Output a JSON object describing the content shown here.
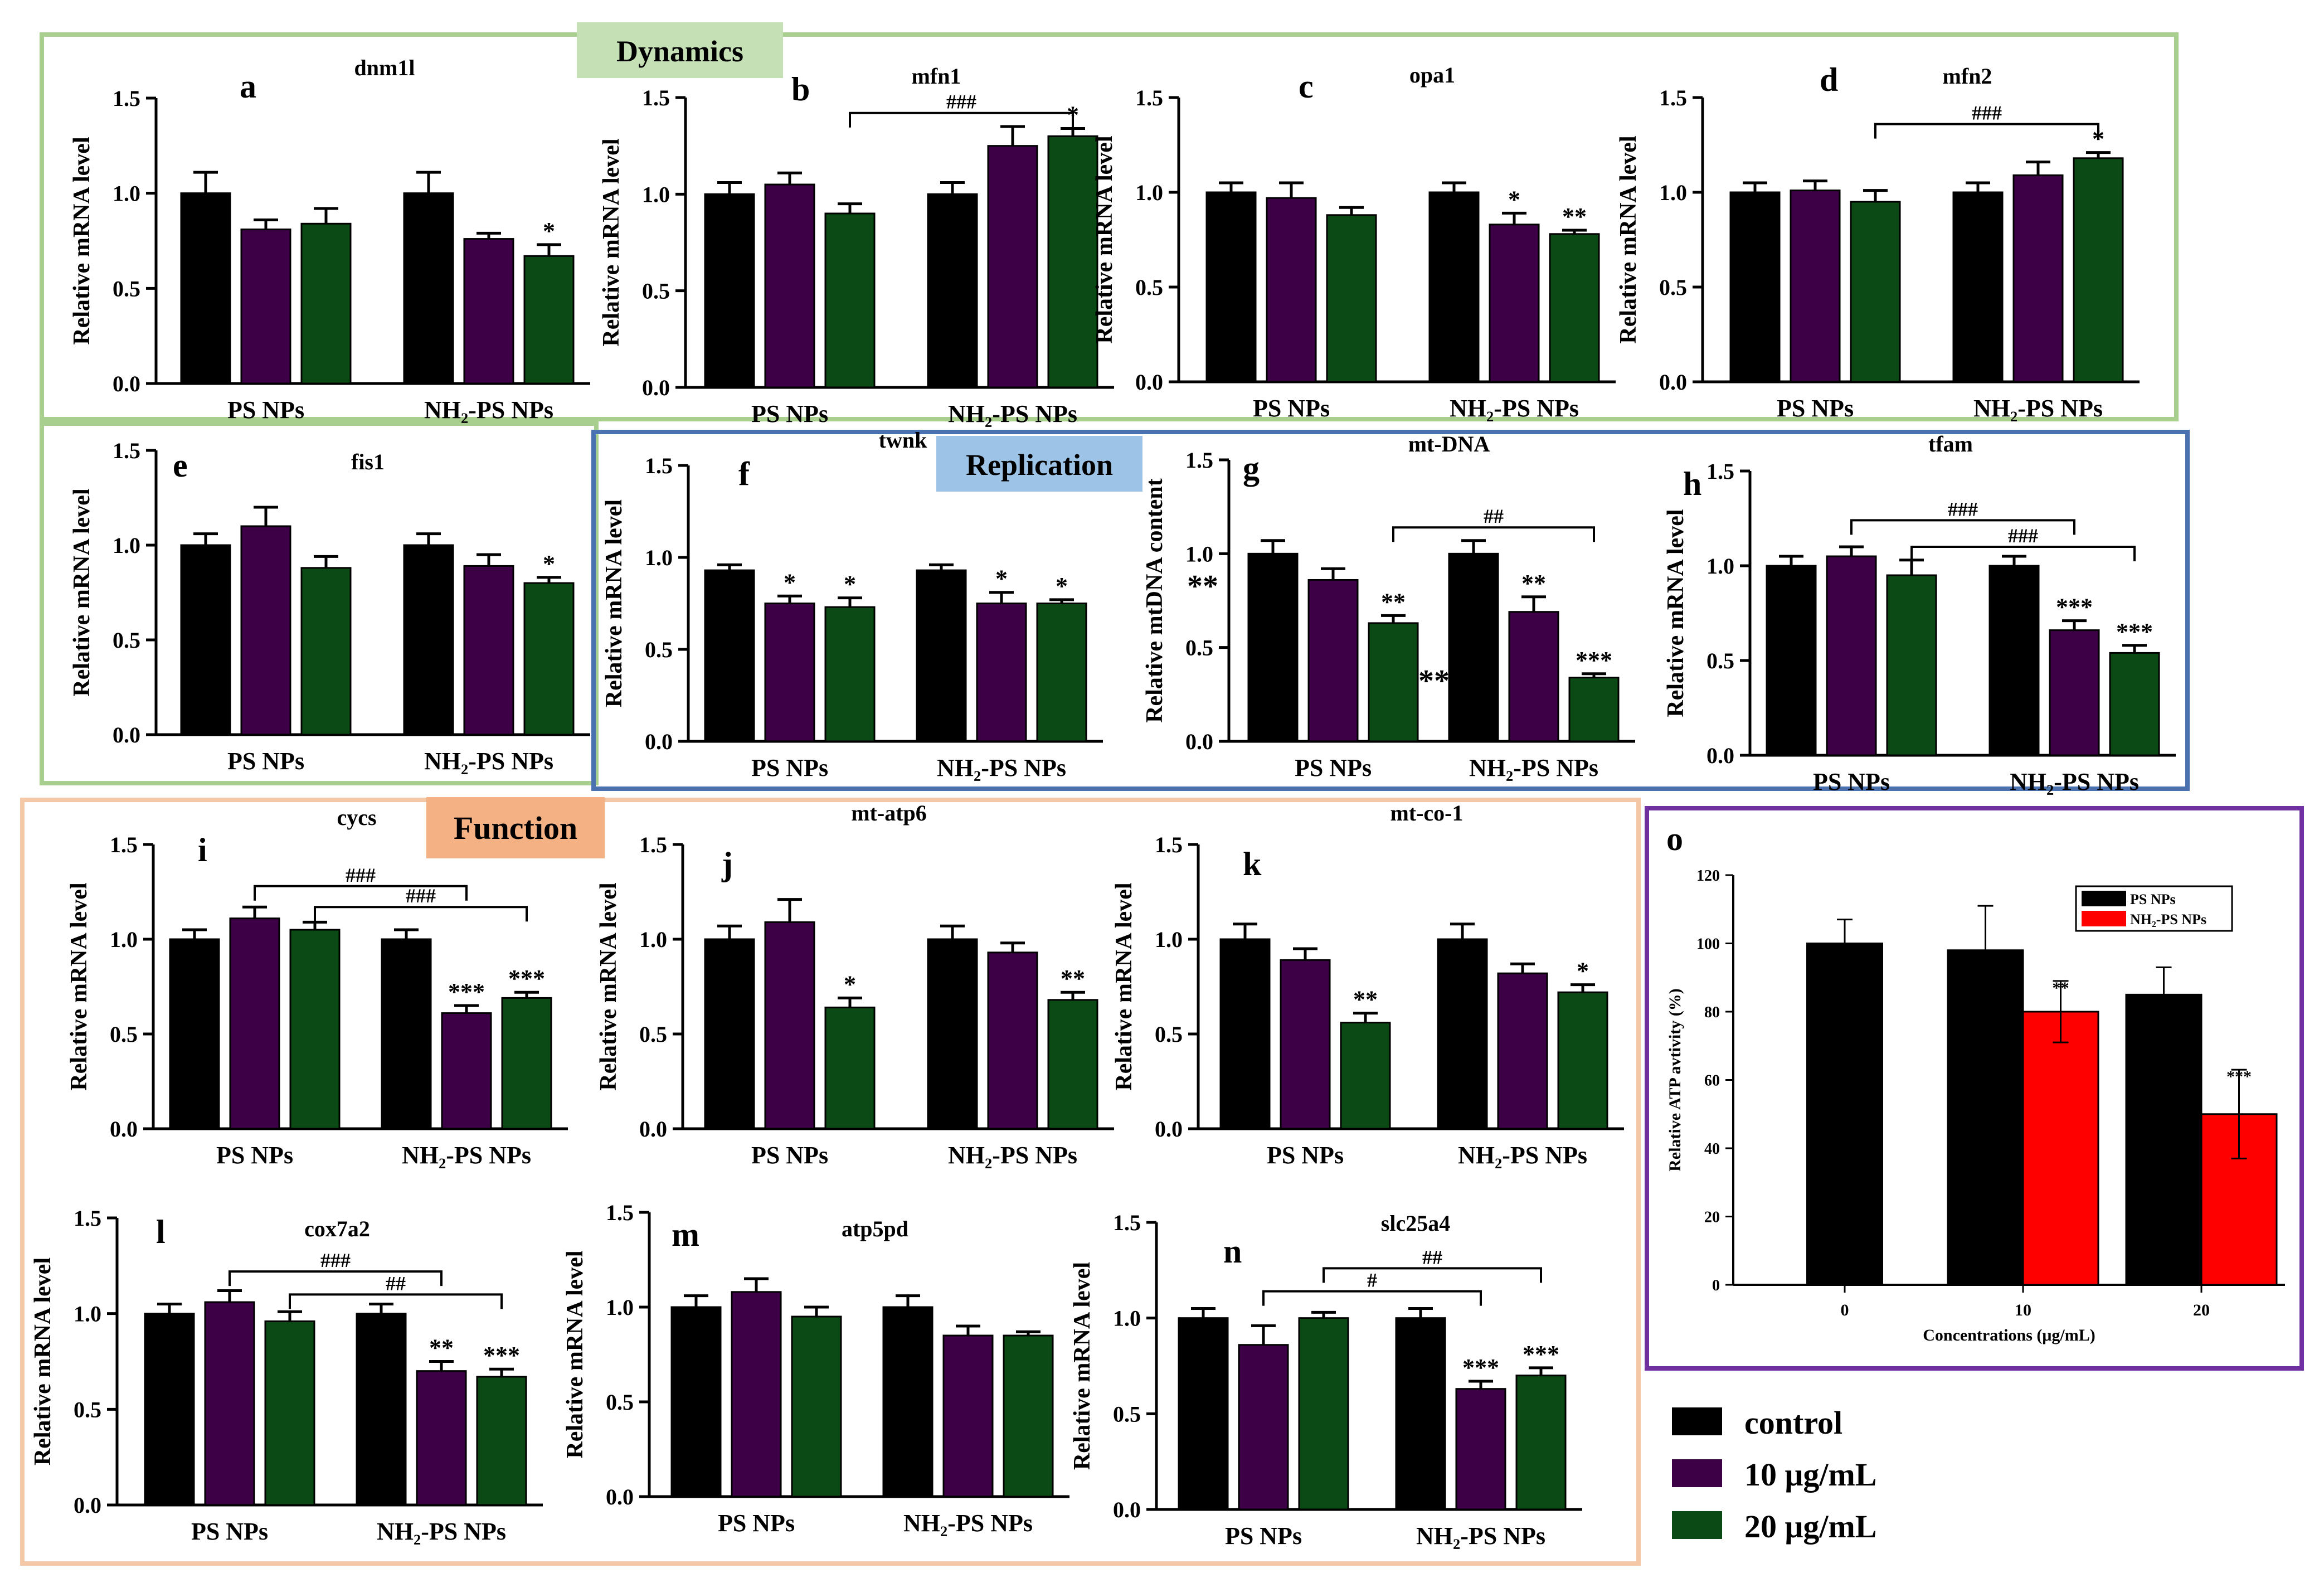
{
  "sections": {
    "dynamics": "Dynamics",
    "replication": "Replication",
    "function": "Function"
  },
  "legend": {
    "control": "control",
    "c10": "10 μg/mL",
    "c20": "20 μg/mL"
  },
  "colors": {
    "control": "#000000",
    "c10": "#3d0046",
    "c20": "#0b4a14",
    "red": "#ff0000",
    "dynamics_border": "#a8cf8e",
    "dynamics_label_bg": "#c5e0b4",
    "replication_border": "#4a72b0",
    "replication_label_bg": "#9dc3e6",
    "function_border": "#f4c7a6",
    "function_label_bg": "#f4b183",
    "atp_border": "#7030a0"
  },
  "chart_data": [
    {
      "id": "a",
      "type": "bar",
      "title": "dnm1l",
      "ylabel": "Relative mRNA level",
      "ylim": [
        0,
        1.5
      ],
      "yticks": [
        "0.0",
        "0.5",
        "1.0",
        "1.5"
      ],
      "categories": [
        "PS NPs",
        "NH₂-PS NPs"
      ],
      "series": [
        {
          "name": "control",
          "values": [
            1.0,
            1.0
          ],
          "errors": [
            0.11,
            0.11
          ]
        },
        {
          "name": "10 μg/mL",
          "values": [
            0.81,
            0.76
          ],
          "errors": [
            0.05,
            0.03
          ]
        },
        {
          "name": "20 μg/mL",
          "values": [
            0.84,
            0.67
          ],
          "errors": [
            0.08,
            0.06
          ]
        }
      ],
      "stars": [
        [
          "",
          "",
          "",
          "",
          "",
          "*"
        ]
      ],
      "brackets": []
    },
    {
      "id": "b",
      "type": "bar",
      "title": "mfn1",
      "ylabel": "Relative mRNA level",
      "ylim": [
        0,
        1.5
      ],
      "yticks": [
        "0.0",
        "0.5",
        "1.0",
        "1.5"
      ],
      "categories": [
        "PS NPs",
        "NH₂-PS NPs"
      ],
      "series": [
        {
          "name": "control",
          "values": [
            1.0,
            1.0
          ],
          "errors": [
            0.06,
            0.06
          ]
        },
        {
          "name": "10 μg/mL",
          "values": [
            1.05,
            1.25
          ],
          "errors": [
            0.06,
            0.1
          ]
        },
        {
          "name": "20 μg/mL",
          "values": [
            0.9,
            1.3
          ],
          "errors": [
            0.05,
            0.04
          ]
        }
      ],
      "stars": [
        [
          "",
          "",
          "",
          "",
          "",
          "*"
        ]
      ],
      "brackets": [
        {
          "from": 2,
          "to": 5,
          "label": "###",
          "level": 1.42
        }
      ]
    },
    {
      "id": "c",
      "type": "bar",
      "title": "opa1",
      "ylabel": "Relative mRNA level",
      "ylim": [
        0,
        1.5
      ],
      "yticks": [
        "0.0",
        "0.5",
        "1.0",
        "1.5"
      ],
      "categories": [
        "PS NPs",
        "NH₂-PS NPs"
      ],
      "series": [
        {
          "name": "control",
          "values": [
            1.0,
            1.0
          ],
          "errors": [
            0.05,
            0.05
          ]
        },
        {
          "name": "10 μg/mL",
          "values": [
            0.97,
            0.83
          ],
          "errors": [
            0.08,
            0.06
          ]
        },
        {
          "name": "20 μg/mL",
          "values": [
            0.88,
            0.78
          ],
          "errors": [
            0.04,
            0.02
          ]
        }
      ],
      "stars": [
        [
          "",
          "",
          "",
          "",
          "*",
          "**"
        ]
      ],
      "brackets": []
    },
    {
      "id": "d",
      "type": "bar",
      "title": "mfn2",
      "ylabel": "Relative mRNA level",
      "ylim": [
        0,
        1.5
      ],
      "yticks": [
        "0.0",
        "0.5",
        "1.0",
        "1.5"
      ],
      "categories": [
        "PS NPs",
        "NH₂-PS NPs"
      ],
      "series": [
        {
          "name": "control",
          "values": [
            1.0,
            1.0
          ],
          "errors": [
            0.05,
            0.05
          ]
        },
        {
          "name": "10 μg/mL",
          "values": [
            1.01,
            1.09
          ],
          "errors": [
            0.05,
            0.07
          ]
        },
        {
          "name": "20 μg/mL",
          "values": [
            0.95,
            1.18
          ],
          "errors": [
            0.06,
            0.03
          ]
        }
      ],
      "stars": [
        [
          "",
          "",
          "",
          "",
          "",
          "*"
        ]
      ],
      "brackets": [
        {
          "from": 2,
          "to": 5,
          "label": "###",
          "level": 1.36
        }
      ]
    },
    {
      "id": "e",
      "type": "bar",
      "title": "fis1",
      "ylabel": "Relative mRNA level",
      "ylim": [
        0,
        1.5
      ],
      "yticks": [
        "0.0",
        "0.5",
        "1.0",
        "1.5"
      ],
      "categories": [
        "PS NPs",
        "NH₂-PS NPs"
      ],
      "series": [
        {
          "name": "control",
          "values": [
            1.0,
            1.0
          ],
          "errors": [
            0.06,
            0.06
          ]
        },
        {
          "name": "10 μg/mL",
          "values": [
            1.1,
            0.89
          ],
          "errors": [
            0.1,
            0.06
          ]
        },
        {
          "name": "20 μg/mL",
          "values": [
            0.88,
            0.8
          ],
          "errors": [
            0.06,
            0.03
          ]
        }
      ],
      "stars": [
        [
          "",
          "",
          "",
          "",
          "",
          "*"
        ]
      ],
      "brackets": []
    },
    {
      "id": "f",
      "type": "bar",
      "title": "twnk",
      "ylabel": "Relative mRNA level",
      "ylim": [
        0,
        1.5
      ],
      "yticks": [
        "0.0",
        "0.5",
        "1.0",
        "1.5"
      ],
      "categories": [
        "PS NPs",
        "NH₂-PS NPs"
      ],
      "series": [
        {
          "name": "control",
          "values": [
            0.93,
            0.93
          ],
          "errors": [
            0.03,
            0.03
          ]
        },
        {
          "name": "10 μg/mL",
          "values": [
            0.75,
            0.75
          ],
          "errors": [
            0.04,
            0.06
          ]
        },
        {
          "name": "20 μg/mL",
          "values": [
            0.73,
            0.75
          ],
          "errors": [
            0.05,
            0.02
          ]
        }
      ],
      "stars": [
        [
          "",
          "*",
          "*",
          "",
          "*",
          "*"
        ]
      ],
      "brackets": []
    },
    {
      "id": "g",
      "type": "bar",
      "title": "mt-DNA",
      "ylabel": "Relative mtDNA content",
      "ylim": [
        0,
        1.5
      ],
      "yticks": [
        "0.0",
        "0.5",
        "1.0",
        "1.5"
      ],
      "categories": [
        "PS NPs",
        "NH₂-PS NPs"
      ],
      "series": [
        {
          "name": "control",
          "values": [
            1.0,
            1.0
          ],
          "errors": [
            0.07,
            0.07
          ]
        },
        {
          "name": "10 μg/mL",
          "values": [
            0.86,
            0.69
          ],
          "errors": [
            0.06,
            0.08
          ]
        },
        {
          "name": "20 μg/mL",
          "values": [
            0.63,
            0.34
          ],
          "errors": [
            0.04,
            0.02
          ]
        }
      ],
      "stars": [
        [
          "",
          "",
          "**",
          "",
          "**",
          "***"
        ]
      ],
      "brackets": [
        {
          "from": 2,
          "to": 5,
          "label": "##",
          "level": 1.14
        }
      ],
      "side_marks": [
        "**",
        "**"
      ]
    },
    {
      "id": "h",
      "type": "bar",
      "title": "tfam",
      "ylabel": "Relative mRNA level",
      "ylim": [
        0,
        1.5
      ],
      "yticks": [
        "0.0",
        "0.5",
        "1.0",
        "1.5"
      ],
      "categories": [
        "PS NPs",
        "NH₂-PS NPs"
      ],
      "series": [
        {
          "name": "control",
          "values": [
            1.0,
            1.0
          ],
          "errors": [
            0.05,
            0.05
          ]
        },
        {
          "name": "10 μg/mL",
          "values": [
            1.05,
            0.66
          ],
          "errors": [
            0.05,
            0.05
          ]
        },
        {
          "name": "20 μg/mL",
          "values": [
            0.95,
            0.54
          ],
          "errors": [
            0.08,
            0.04
          ]
        }
      ],
      "stars": [
        [
          "",
          "",
          "",
          "",
          "***",
          "***"
        ]
      ],
      "brackets": [
        {
          "from": 1,
          "to": 4,
          "label": "###",
          "level": 1.24
        },
        {
          "from": 2,
          "to": 5,
          "label": "###",
          "level": 1.1
        }
      ]
    },
    {
      "id": "i",
      "type": "bar",
      "title": "cycs",
      "ylabel": "Relative mRNA level",
      "ylim": [
        0,
        1.5
      ],
      "yticks": [
        "0.0",
        "0.5",
        "1.0",
        "1.5"
      ],
      "categories": [
        "PS NPs",
        "NH₂-PS NPs"
      ],
      "series": [
        {
          "name": "control",
          "values": [
            1.0,
            1.0
          ],
          "errors": [
            0.05,
            0.05
          ]
        },
        {
          "name": "10 μg/mL",
          "values": [
            1.11,
            0.61
          ],
          "errors": [
            0.06,
            0.04
          ]
        },
        {
          "name": "20 μg/mL",
          "values": [
            1.05,
            0.69
          ],
          "errors": [
            0.04,
            0.03
          ]
        }
      ],
      "stars": [
        [
          "",
          "",
          "",
          "",
          "***",
          "***"
        ]
      ],
      "brackets": [
        {
          "from": 1,
          "to": 4,
          "label": "###",
          "level": 1.28
        },
        {
          "from": 2,
          "to": 5,
          "label": "###",
          "level": 1.17
        }
      ]
    },
    {
      "id": "j",
      "type": "bar",
      "title": "mt-atp6",
      "ylabel": "Relative mRNA level",
      "ylim": [
        0,
        1.5
      ],
      "yticks": [
        "0.0",
        "0.5",
        "1.0",
        "1.5"
      ],
      "categories": [
        "PS NPs",
        "NH₂-PS NPs"
      ],
      "series": [
        {
          "name": "control",
          "values": [
            1.0,
            1.0
          ],
          "errors": [
            0.07,
            0.07
          ]
        },
        {
          "name": "10 μg/mL",
          "values": [
            1.09,
            0.93
          ],
          "errors": [
            0.12,
            0.05
          ]
        },
        {
          "name": "20 μg/mL",
          "values": [
            0.64,
            0.68
          ],
          "errors": [
            0.05,
            0.04
          ]
        }
      ],
      "stars": [
        [
          "",
          "",
          "*",
          "",
          "",
          "**"
        ]
      ],
      "brackets": []
    },
    {
      "id": "k",
      "type": "bar",
      "title": "mt-co-1",
      "ylabel": "Relative mRNA level",
      "ylim": [
        0,
        1.5
      ],
      "yticks": [
        "0.0",
        "0.5",
        "1.0",
        "1.5"
      ],
      "categories": [
        "PS NPs",
        "NH₂-PS NPs"
      ],
      "series": [
        {
          "name": "control",
          "values": [
            1.0,
            1.0
          ],
          "errors": [
            0.08,
            0.08
          ]
        },
        {
          "name": "10 μg/mL",
          "values": [
            0.89,
            0.82
          ],
          "errors": [
            0.06,
            0.05
          ]
        },
        {
          "name": "20 μg/mL",
          "values": [
            0.56,
            0.72
          ],
          "errors": [
            0.05,
            0.04
          ]
        }
      ],
      "stars": [
        [
          "",
          "",
          "**",
          "",
          "",
          "*"
        ]
      ],
      "brackets": []
    },
    {
      "id": "l",
      "type": "bar",
      "title": "cox7a2",
      "ylabel": "Relative mRNA level",
      "ylim": [
        0,
        1.5
      ],
      "yticks": [
        "0.0",
        "0.5",
        "1.0",
        "1.5"
      ],
      "categories": [
        "PS NPs",
        "NH₂-PS NPs"
      ],
      "series": [
        {
          "name": "control",
          "values": [
            1.0,
            1.0
          ],
          "errors": [
            0.05,
            0.05
          ]
        },
        {
          "name": "10 μg/mL",
          "values": [
            1.06,
            0.7
          ],
          "errors": [
            0.06,
            0.05
          ]
        },
        {
          "name": "20 μg/mL",
          "values": [
            0.96,
            0.67
          ],
          "errors": [
            0.05,
            0.04
          ]
        }
      ],
      "stars": [
        [
          "",
          "",
          "",
          "",
          "**",
          "***"
        ]
      ],
      "brackets": [
        {
          "from": 1,
          "to": 4,
          "label": "###",
          "level": 1.22
        },
        {
          "from": 2,
          "to": 5,
          "label": "##",
          "level": 1.1
        }
      ]
    },
    {
      "id": "m",
      "type": "bar",
      "title": "atp5pd",
      "ylabel": "Relative mRNA level",
      "ylim": [
        0,
        1.5
      ],
      "yticks": [
        "0.0",
        "0.5",
        "1.0",
        "1.5"
      ],
      "categories": [
        "PS NPs",
        "NH₂-PS NPs"
      ],
      "series": [
        {
          "name": "control",
          "values": [
            1.0,
            1.0
          ],
          "errors": [
            0.06,
            0.06
          ]
        },
        {
          "name": "10 μg/mL",
          "values": [
            1.08,
            0.85
          ],
          "errors": [
            0.07,
            0.05
          ]
        },
        {
          "name": "20 μg/mL",
          "values": [
            0.95,
            0.85
          ],
          "errors": [
            0.05,
            0.02
          ]
        }
      ],
      "stars": [
        [
          "",
          "",
          "",
          "",
          "",
          ""
        ]
      ],
      "brackets": []
    },
    {
      "id": "n",
      "type": "bar",
      "title": "slc25a4",
      "ylabel": "Relative mRNA level",
      "ylim": [
        0,
        1.5
      ],
      "yticks": [
        "0.0",
        "0.5",
        "1.0",
        "1.5"
      ],
      "categories": [
        "PS NPs",
        "NH₂-PS NPs"
      ],
      "series": [
        {
          "name": "control",
          "values": [
            1.0,
            1.0
          ],
          "errors": [
            0.05,
            0.05
          ]
        },
        {
          "name": "10 μg/mL",
          "values": [
            0.86,
            0.63
          ],
          "errors": [
            0.1,
            0.04
          ]
        },
        {
          "name": "20 μg/mL",
          "values": [
            1.0,
            0.7
          ],
          "errors": [
            0.03,
            0.04
          ]
        }
      ],
      "stars": [
        [
          "",
          "",
          "",
          "",
          "***",
          "***"
        ]
      ],
      "brackets": [
        {
          "from": 1,
          "to": 4,
          "label": "#",
          "level": 1.14
        },
        {
          "from": 2,
          "to": 5,
          "label": "##",
          "level": 1.26
        }
      ]
    },
    {
      "id": "o",
      "type": "bar",
      "title": "",
      "ylabel": "Relative ATP avtivity (%)",
      "xlabel": "Concentrations (μg/mL)",
      "ylim": [
        0,
        120
      ],
      "yticks": [
        "0",
        "20",
        "40",
        "60",
        "80",
        "100",
        "120"
      ],
      "categories": [
        "0",
        "10",
        "20"
      ],
      "series": [
        {
          "name": "PS NPs",
          "values": [
            100,
            98,
            85
          ],
          "errors": [
            7,
            13,
            8
          ]
        },
        {
          "name": "NH₂-PS NPs",
          "values": [
            null,
            80,
            50
          ],
          "errors": [
            null,
            9,
            13
          ]
        }
      ],
      "stars": [
        [
          "",
          "**",
          "***"
        ]
      ]
    }
  ]
}
